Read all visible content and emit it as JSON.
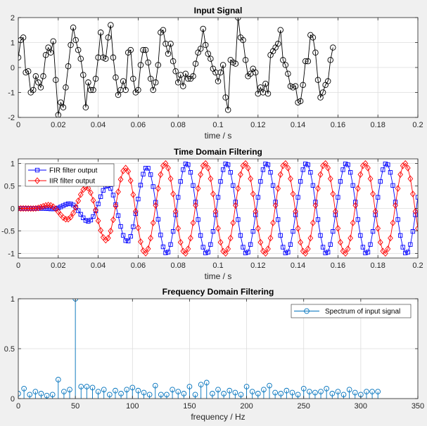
{
  "chart_data": [
    {
      "type": "line",
      "title": "Input Signal",
      "xlabel": "time / s",
      "ylabel": "",
      "xlim": [
        0,
        0.2
      ],
      "ylim": [
        -2,
        2
      ],
      "xticks": [
        0,
        0.02,
        0.04,
        0.06,
        0.08,
        0.1,
        0.12,
        0.14,
        0.16,
        0.18,
        0.2
      ],
      "xtick_labels": [
        "0",
        "0.02",
        "0.04",
        "0.06",
        "0.08",
        "0.1",
        "0.12",
        "0.14",
        "0.16",
        "0.18",
        "0.2"
      ],
      "yticks": [
        -2,
        -1,
        0,
        1,
        2
      ],
      "ytick_labels": [
        "-2",
        "-1",
        "0",
        "1",
        "2"
      ],
      "grid": true,
      "series": [
        {
          "name": "",
          "color": "#000000",
          "marker": "circle",
          "x_start": 0,
          "x_step": 0.00125,
          "y": [
            0.4,
            1.1,
            1.2,
            -0.2,
            -0.15,
            -1.0,
            -0.9,
            -0.35,
            -0.6,
            -0.8,
            -0.35,
            0.5,
            0.8,
            0.6,
            1.05,
            -0.5,
            -1.9,
            -1.4,
            -1.6,
            -0.8,
            0.05,
            0.9,
            1.6,
            1.1,
            0.7,
            0.35,
            -0.3,
            -1.6,
            -0.6,
            -0.9,
            -0.9,
            -0.45,
            0.4,
            1.4,
            0.4,
            0.35,
            1.2,
            1.7,
            0.4,
            -0.4,
            -1.1,
            -0.9,
            -0.55,
            -0.9,
            0.6,
            0.7,
            -0.45,
            -1.0,
            -0.9,
            0.1,
            0.7,
            0.7,
            0.2,
            -0.45,
            -0.9,
            -0.6,
            0.1,
            1.4,
            1.5,
            0.95,
            0.55,
            0.95,
            0.25,
            -0.15,
            -0.6,
            -0.3,
            -0.75,
            -0.25,
            -0.45,
            -0.45,
            -0.35,
            0.15,
            0.6,
            0.75,
            1.55,
            0.9,
            0.55,
            0.35,
            -0.05,
            -0.2,
            -0.55,
            -0.2,
            0.1,
            -1.2,
            -1.7,
            0.3,
            0.2,
            0.15,
            2.0,
            1.2,
            1.1,
            0.3,
            -0.35,
            -0.25,
            -0.05,
            -0.2,
            -1.05,
            -0.8,
            -1.0,
            -0.65,
            -1.05,
            0.5,
            0.65,
            0.8,
            0.95,
            1.5,
            0.3,
            0.1,
            -0.25,
            -0.75,
            -0.8,
            -0.75,
            -1.4,
            -1.35,
            -0.7,
            0.25,
            0.25,
            1.3,
            1.2,
            0.6,
            -0.5,
            -1.2,
            -1.0,
            -0.7,
            -0.55,
            0.3,
            0.8
          ]
        }
      ]
    },
    {
      "type": "line",
      "title": "Time Domain Filtering",
      "xlabel": "time / s",
      "ylabel": "",
      "xlim": [
        0,
        0.2
      ],
      "ylim": [
        -1.1,
        1.1
      ],
      "xticks": [
        0,
        0.02,
        0.04,
        0.06,
        0.08,
        0.1,
        0.12,
        0.14,
        0.16,
        0.18,
        0.2
      ],
      "xtick_labels": [
        "0",
        "0.02",
        "0.04",
        "0.06",
        "0.08",
        "0.1",
        "0.12",
        "0.14",
        "0.16",
        "0.18",
        "0.2"
      ],
      "yticks": [
        -1,
        -0.5,
        0,
        0.5,
        1
      ],
      "ytick_labels": [
        "-1",
        "-0.5",
        "0",
        "0.5",
        "1"
      ],
      "grid": true,
      "legend": "top-left",
      "series": [
        {
          "name": "FIR filter output",
          "color": "#0000ff",
          "marker": "square",
          "x_start": 0,
          "x_step": 0.00125,
          "frequency_hz": 50,
          "phase_rad": 0.25,
          "ramp": {
            "t0": 0.012,
            "t1": 0.076,
            "amplitude": 1.0
          }
        },
        {
          "name": "IIR filter output",
          "color": "#ff0000",
          "marker": "diamond",
          "x_start": 0,
          "x_step": 0.00125,
          "frequency_hz": 50,
          "phase_rad": 3.6,
          "ramp": {
            "t0": 0.004,
            "t1": 0.066,
            "amplitude": 1.0
          }
        }
      ]
    },
    {
      "type": "stem",
      "title": "Frequency Domain Filtering",
      "xlabel": "frequency / Hz",
      "ylabel": "",
      "xlim": [
        0,
        350
      ],
      "ylim": [
        0,
        1
      ],
      "xticks": [
        0,
        50,
        100,
        150,
        200,
        250,
        300,
        350
      ],
      "xtick_labels": [
        "0",
        "50",
        "100",
        "150",
        "200",
        "250",
        "300",
        "350"
      ],
      "yticks": [
        0,
        0.5,
        1
      ],
      "ytick_labels": [
        "0",
        "0.5",
        "1"
      ],
      "grid": true,
      "legend": "top-right",
      "series": [
        {
          "name": "Spectrum of input signal",
          "color": "#0072bd",
          "marker": "circle",
          "x_start": 0,
          "x_step": 5,
          "y": [
            0.05,
            0.1,
            0.04,
            0.07,
            0.05,
            0.03,
            0.04,
            0.19,
            0.07,
            0.09,
            1.0,
            0.12,
            0.12,
            0.11,
            0.07,
            0.09,
            0.04,
            0.08,
            0.05,
            0.09,
            0.11,
            0.08,
            0.06,
            0.04,
            0.13,
            0.04,
            0.04,
            0.09,
            0.07,
            0.05,
            0.12,
            0.04,
            0.14,
            0.16,
            0.05,
            0.09,
            0.05,
            0.08,
            0.06,
            0.04,
            0.12,
            0.07,
            0.05,
            0.09,
            0.13,
            0.06,
            0.05,
            0.08,
            0.06,
            0.04,
            0.1,
            0.07,
            0.06,
            0.07,
            0.1,
            0.05,
            0.07,
            0.04,
            0.09,
            0.06,
            0.04,
            0.07,
            0.07,
            0.07
          ]
        }
      ]
    }
  ]
}
